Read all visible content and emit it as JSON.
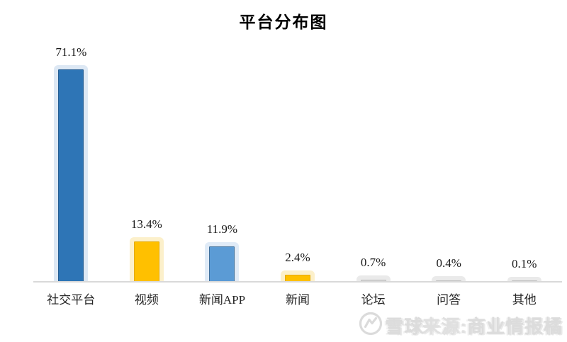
{
  "chart_data": {
    "type": "bar",
    "title": "平台分布图",
    "categories": [
      "社交平台",
      "视频",
      "新闻APP",
      "新闻",
      "论坛",
      "问答",
      "其他"
    ],
    "values": [
      71.1,
      13.4,
      11.9,
      2.4,
      0.7,
      0.4,
      0.1
    ],
    "value_labels": [
      "71.1%",
      "13.4%",
      "11.9%",
      "2.4%",
      "0.7%",
      "0.4%",
      "0.1%"
    ],
    "bar_colors": [
      "#2E75B6",
      "#FFC000",
      "#5B9BD5",
      "#FFC000",
      "#D2D2D2",
      "#D2D2D2",
      "#D2D2D2"
    ],
    "bar_border_colors": [
      "#255E93",
      "#E3A900",
      "#41719C",
      "#E3A900",
      "#BFBFBF",
      "#BFBFBF",
      "#BFBFBF"
    ],
    "glow_colors": [
      "#DDE8F4",
      "#FCF0CB",
      "#E0EBF7",
      "#FCF0CB",
      "#EAEAEA",
      "#EAEAEA",
      "#EAEAEA"
    ],
    "xlabel": "",
    "ylabel": "",
    "ylim": [
      0,
      80
    ],
    "grid": false,
    "legend": false,
    "axis_color": "#D9D9D9"
  },
  "watermark": {
    "logo": "xueqiu-circle-logo",
    "brand": "雪球",
    "source_label": "来源:",
    "account": "商业情报橘"
  }
}
